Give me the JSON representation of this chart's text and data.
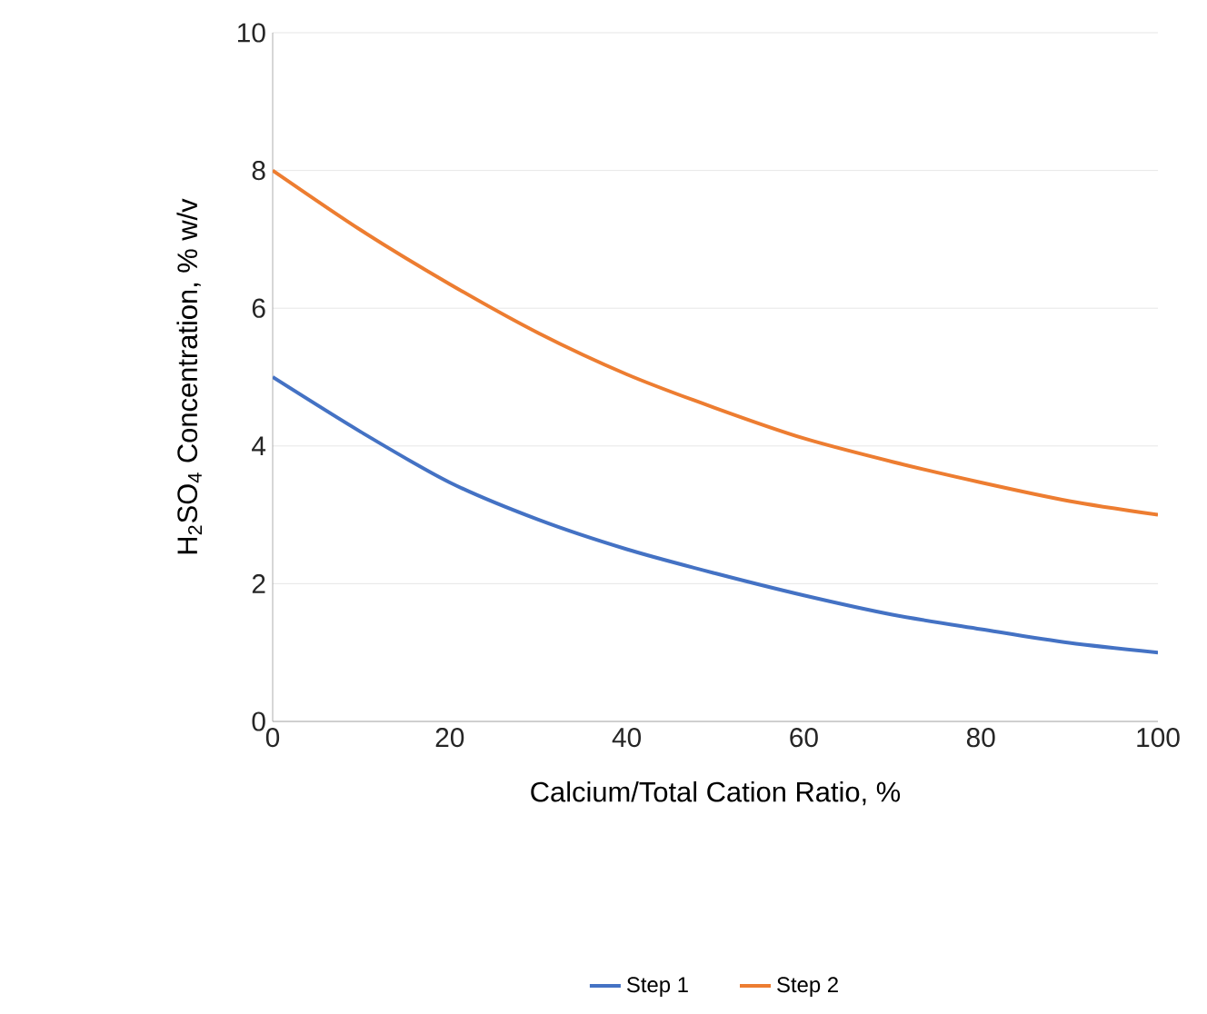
{
  "chart_data": {
    "type": "line",
    "xlabel": "Calcium/Total Cation Ratio, %",
    "ylabel": "H$_{2}$SO$_{4}$ Concentration, % w/v",
    "x": [
      0,
      10,
      20,
      30,
      40,
      50,
      60,
      70,
      80,
      90,
      100
    ],
    "series": [
      {
        "name": "Step 1",
        "color": "#4472c4",
        "values": [
          5,
          4.2,
          3.47,
          2.93,
          2.5,
          2.15,
          1.83,
          1.55,
          1.34,
          1.14,
          1.0
        ]
      },
      {
        "name": "Step 2",
        "color": "#ed7d31",
        "values": [
          8,
          7.13,
          6.35,
          5.64,
          5.04,
          4.55,
          4.11,
          3.77,
          3.47,
          3.2,
          3.0
        ]
      }
    ],
    "xlim": [
      0,
      100
    ],
    "ylim": [
      0,
      10
    ],
    "xticks": [
      0,
      20,
      40,
      60,
      80,
      100
    ],
    "yticks": [
      0,
      2,
      4,
      6,
      8,
      10
    ],
    "grid": "y",
    "legend": "bottom",
    "marker": "none",
    "line_style": "solid"
  }
}
